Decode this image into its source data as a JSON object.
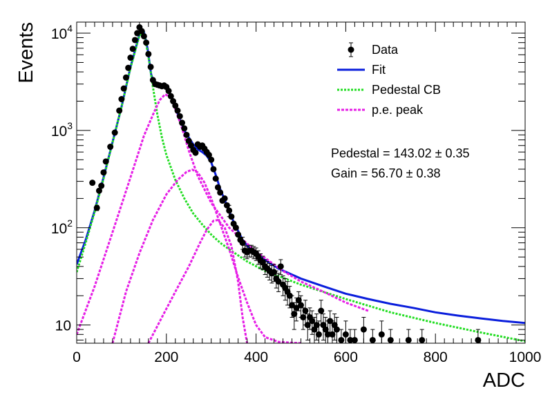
{
  "chart_data": {
    "type": "scatter",
    "xlabel": "ADC",
    "ylabel": "Events",
    "xlim": [
      0,
      1000
    ],
    "ylim": [
      6.5,
      13000
    ],
    "yscale": "log",
    "grid": false,
    "legend_position": "top-right",
    "x_ticks": [
      {
        "value": 0,
        "label": "0"
      },
      {
        "value": 200,
        "label": "200"
      },
      {
        "value": 400,
        "label": "400"
      },
      {
        "value": 600,
        "label": "600"
      },
      {
        "value": 800,
        "label": "800"
      },
      {
        "value": 1000,
        "label": "1000"
      }
    ],
    "y_ticks": [
      {
        "value": 10,
        "base": "10",
        "exp": ""
      },
      {
        "value": 100,
        "base": "10",
        "exp": "2"
      },
      {
        "value": 1000,
        "base": "10",
        "exp": "3"
      },
      {
        "value": 10000,
        "base": "10",
        "exp": "4"
      }
    ],
    "annotations": [
      {
        "text": "Pedestal = 143.02 ± 0.35"
      },
      {
        "text": "Gain = 56.70 ± 0.38"
      }
    ],
    "series": [
      {
        "name": "Data",
        "kind": "points",
        "color": "#000000",
        "points": [
          [
            35,
            290,
            0
          ],
          [
            45,
            160,
            10
          ],
          [
            50,
            240,
            0
          ],
          [
            55,
            270,
            0
          ],
          [
            60,
            370,
            0
          ],
          [
            65,
            480,
            0
          ],
          [
            75,
            680,
            0
          ],
          [
            85,
            950,
            0
          ],
          [
            95,
            1600,
            0
          ],
          [
            100,
            2100,
            0
          ],
          [
            105,
            2700,
            0
          ],
          [
            110,
            3500,
            0
          ],
          [
            115,
            4400,
            0
          ],
          [
            120,
            5600,
            0
          ],
          [
            125,
            6900,
            0
          ],
          [
            130,
            8500,
            0
          ],
          [
            135,
            10000,
            0
          ],
          [
            140,
            11500,
            0
          ],
          [
            145,
            10500,
            0
          ],
          [
            150,
            9300,
            0
          ],
          [
            155,
            8000,
            0
          ],
          [
            160,
            6100,
            0
          ],
          [
            165,
            4500,
            0
          ],
          [
            170,
            3300,
            0
          ],
          [
            175,
            3000,
            0
          ],
          [
            180,
            2950,
            0
          ],
          [
            185,
            2900,
            0
          ],
          [
            190,
            2850,
            0
          ],
          [
            195,
            2900,
            0
          ],
          [
            200,
            2800,
            0
          ],
          [
            205,
            2550,
            0
          ],
          [
            210,
            2250,
            0
          ],
          [
            215,
            2000,
            0
          ],
          [
            220,
            1800,
            0
          ],
          [
            225,
            1600,
            0
          ],
          [
            230,
            1400,
            0
          ],
          [
            235,
            1200,
            0
          ],
          [
            240,
            1050,
            0
          ],
          [
            245,
            900,
            0
          ],
          [
            250,
            780,
            0
          ],
          [
            255,
            700,
            0
          ],
          [
            260,
            630,
            0
          ],
          [
            265,
            590,
            0
          ],
          [
            270,
            720,
            0
          ],
          [
            275,
            680,
            0
          ],
          [
            280,
            700,
            0
          ],
          [
            285,
            650,
            0
          ],
          [
            290,
            600,
            0
          ],
          [
            295,
            560,
            0
          ],
          [
            300,
            500,
            0
          ],
          [
            305,
            400,
            0
          ],
          [
            310,
            320,
            0
          ],
          [
            315,
            260,
            0
          ],
          [
            320,
            230,
            0
          ],
          [
            325,
            190,
            0
          ],
          [
            330,
            200,
            0
          ],
          [
            335,
            170,
            0
          ],
          [
            340,
            150,
            20
          ],
          [
            345,
            130,
            0
          ],
          [
            350,
            110,
            0
          ],
          [
            355,
            100,
            0
          ],
          [
            360,
            85,
            0
          ],
          [
            365,
            75,
            0
          ],
          [
            370,
            70,
            10
          ],
          [
            375,
            58,
            8
          ],
          [
            380,
            56,
            8
          ],
          [
            385,
            58,
            8
          ],
          [
            390,
            58,
            8
          ],
          [
            395,
            56,
            8
          ],
          [
            400,
            54,
            8
          ],
          [
            405,
            50,
            8
          ],
          [
            410,
            46,
            8
          ],
          [
            415,
            44,
            7
          ],
          [
            420,
            40,
            7
          ],
          [
            425,
            38,
            7
          ],
          [
            430,
            36,
            7
          ],
          [
            435,
            34,
            7
          ],
          [
            440,
            35,
            7
          ],
          [
            445,
            30,
            6
          ],
          [
            450,
            28,
            6
          ],
          [
            455,
            40,
            7
          ],
          [
            460,
            26,
            6
          ],
          [
            465,
            24,
            6
          ],
          [
            470,
            22,
            6
          ],
          [
            475,
            20,
            5
          ],
          [
            480,
            16,
            4
          ],
          [
            485,
            13,
            4
          ],
          [
            490,
            15,
            4
          ],
          [
            495,
            18,
            4
          ],
          [
            500,
            16,
            4
          ],
          [
            505,
            12,
            3
          ],
          [
            510,
            14,
            4
          ],
          [
            515,
            10,
            3
          ],
          [
            520,
            12,
            3
          ],
          [
            525,
            11,
            3
          ],
          [
            530,
            9,
            3
          ],
          [
            535,
            10,
            3
          ],
          [
            540,
            8,
            3
          ],
          [
            545,
            14,
            4
          ],
          [
            550,
            10,
            3
          ],
          [
            555,
            9,
            3
          ],
          [
            560,
            8,
            3
          ],
          [
            565,
            11,
            3
          ],
          [
            570,
            8,
            3
          ],
          [
            575,
            10,
            3
          ],
          [
            580,
            9,
            3
          ],
          [
            590,
            7,
            2
          ],
          [
            600,
            8,
            3
          ],
          [
            610,
            7,
            2
          ],
          [
            620,
            7,
            2
          ],
          [
            640,
            9,
            3
          ],
          [
            660,
            7,
            2
          ],
          [
            680,
            8,
            3
          ],
          [
            700,
            7,
            2
          ],
          [
            740,
            7,
            2
          ],
          [
            770,
            7,
            2
          ],
          [
            895,
            7,
            2
          ]
        ]
      },
      {
        "name": "Fit",
        "kind": "line",
        "color": "#0a1edc",
        "points": [
          [
            0,
            42
          ],
          [
            20,
            75
          ],
          [
            40,
            150
          ],
          [
            60,
            330
          ],
          [
            80,
            760
          ],
          [
            100,
            1750
          ],
          [
            120,
            4500
          ],
          [
            140,
            9800
          ],
          [
            150,
            10400
          ],
          [
            158,
            7000
          ],
          [
            166,
            3800
          ],
          [
            172,
            3100
          ],
          [
            185,
            2950
          ],
          [
            195,
            2900
          ],
          [
            205,
            2650
          ],
          [
            220,
            1700
          ],
          [
            240,
            1000
          ],
          [
            260,
            720
          ],
          [
            270,
            640
          ],
          [
            280,
            600
          ],
          [
            290,
            550
          ],
          [
            300,
            470
          ],
          [
            310,
            350
          ],
          [
            320,
            250
          ],
          [
            335,
            170
          ],
          [
            350,
            115
          ],
          [
            370,
            75
          ],
          [
            390,
            58
          ],
          [
            410,
            50
          ],
          [
            450,
            38
          ],
          [
            500,
            30
          ],
          [
            550,
            25
          ],
          [
            600,
            21
          ],
          [
            650,
            18.5
          ],
          [
            700,
            16.5
          ],
          [
            750,
            15
          ],
          [
            800,
            13.5
          ],
          [
            850,
            12.5
          ],
          [
            900,
            11.7
          ],
          [
            950,
            11
          ],
          [
            1000,
            10.5
          ]
        ]
      },
      {
        "name": "Pedestal CB",
        "kind": "line",
        "color": "#22dd22",
        "points": [
          [
            0,
            35
          ],
          [
            20,
            70
          ],
          [
            40,
            145
          ],
          [
            60,
            320
          ],
          [
            80,
            750
          ],
          [
            100,
            1750
          ],
          [
            120,
            4400
          ],
          [
            140,
            9500
          ],
          [
            150,
            10200
          ],
          [
            160,
            5800
          ],
          [
            170,
            2800
          ],
          [
            180,
            1450
          ],
          [
            190,
            850
          ],
          [
            200,
            560
          ],
          [
            220,
            310
          ],
          [
            240,
            200
          ],
          [
            260,
            140
          ],
          [
            280,
            108
          ],
          [
            300,
            85
          ],
          [
            320,
            70
          ],
          [
            340,
            60
          ],
          [
            380,
            45
          ],
          [
            420,
            36
          ],
          [
            500,
            26
          ],
          [
            600,
            18.5
          ],
          [
            700,
            13.5
          ],
          [
            800,
            10.5
          ],
          [
            900,
            8.4
          ],
          [
            1000,
            6.8
          ]
        ]
      },
      {
        "name": "p.e. peak",
        "kind": "line",
        "color": "#e61ee6",
        "segments": [
          [
            [
              0,
              8
            ],
            [
              40,
              25
            ],
            [
              80,
              90
            ],
            [
              120,
              330
            ],
            [
              150,
              880
            ],
            [
              170,
              1450
            ],
            [
              185,
              2050
            ],
            [
              197,
              2350
            ],
            [
              210,
              2200
            ],
            [
              220,
              1650
            ],
            [
              235,
              1050
            ],
            [
              250,
              620
            ],
            [
              270,
              340
            ],
            [
              300,
              180
            ],
            [
              340,
              100
            ],
            [
              400,
              57
            ],
            [
              460,
              36
            ],
            [
              500,
              28
            ],
            [
              550,
              22
            ],
            [
              600,
              17
            ],
            [
              650,
              14
            ]
          ],
          [
            [
              80,
              6.5
            ],
            [
              110,
              22
            ],
            [
              140,
              55
            ],
            [
              170,
              120
            ],
            [
              200,
              220
            ],
            [
              225,
              310
            ],
            [
              245,
              375
            ],
            [
              258,
              395
            ],
            [
              270,
              370
            ],
            [
              285,
              290
            ],
            [
              300,
              200
            ],
            [
              320,
              110
            ],
            [
              340,
              60
            ],
            [
              360,
              31
            ],
            [
              380,
              17
            ],
            [
              400,
              10
            ],
            [
              420,
              7.5
            ],
            [
              450,
              6.7
            ],
            [
              500,
              6.5
            ]
          ],
          [
            [
              160,
              6.5
            ],
            [
              190,
              12
            ],
            [
              220,
              22
            ],
            [
              250,
              40
            ],
            [
              275,
              70
            ],
            [
              290,
              95
            ],
            [
              305,
              118
            ],
            [
              315,
              120
            ],
            [
              330,
              100
            ],
            [
              345,
              65
            ],
            [
              360,
              28
            ],
            [
              370,
              12
            ],
            [
              380,
              6.5
            ]
          ]
        ]
      }
    ]
  }
}
